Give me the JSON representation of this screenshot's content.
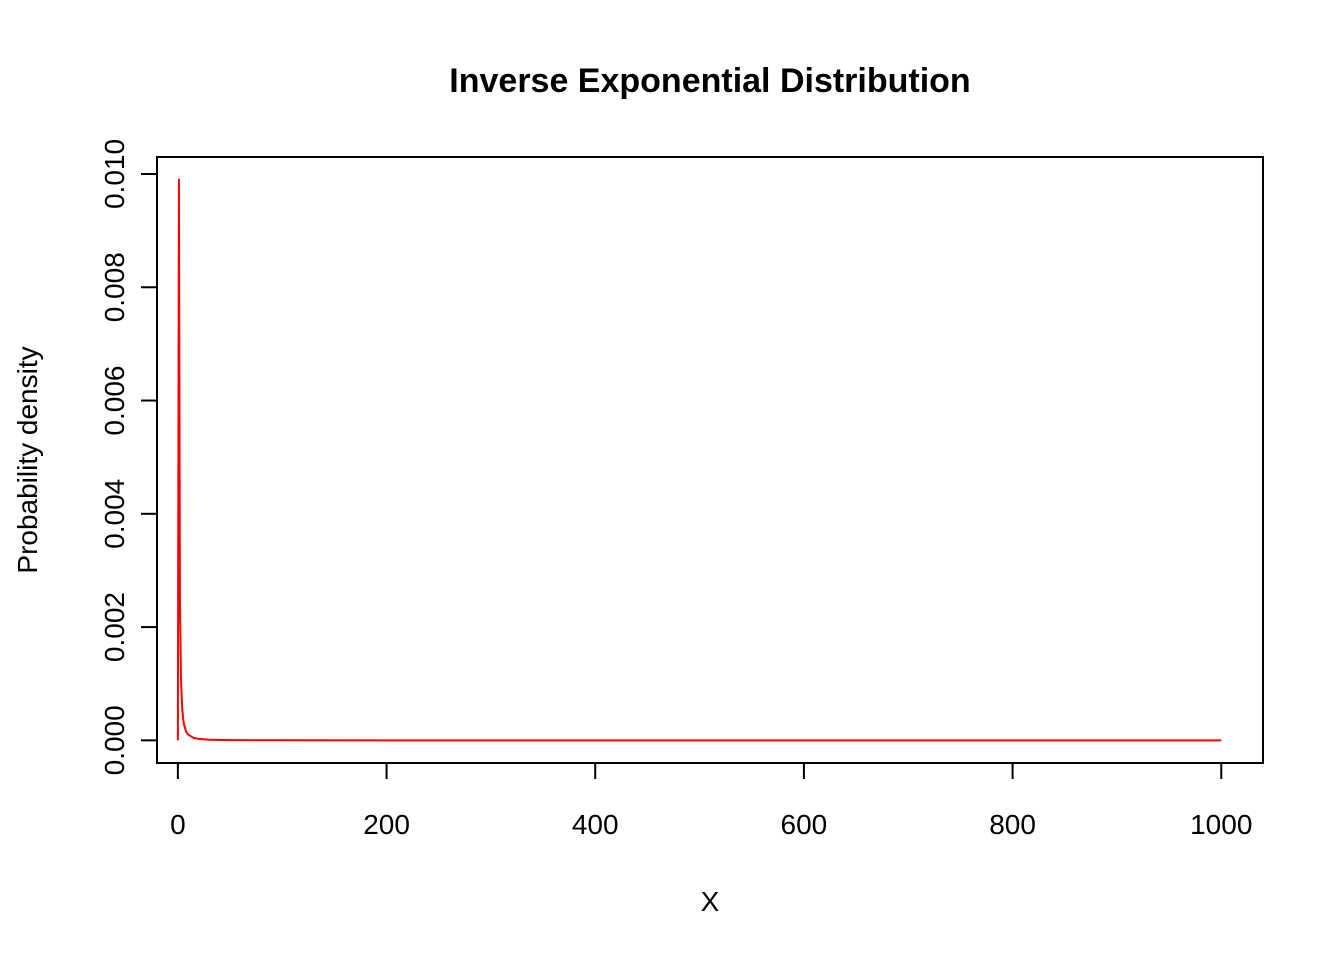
{
  "chart_data": {
    "type": "line",
    "title": "Inverse Exponential Distribution",
    "xlabel": "X",
    "ylabel": "Probability density",
    "xlim": [
      -20,
      1040
    ],
    "ylim": [
      -0.0004,
      0.0103
    ],
    "x_ticks": [
      0,
      200,
      400,
      600,
      800,
      1000
    ],
    "x_tick_labels": [
      "0",
      "200",
      "400",
      "600",
      "800",
      "1000"
    ],
    "y_ticks": [
      0,
      0.002,
      0.004,
      0.006,
      0.008,
      0.01
    ],
    "y_tick_labels": [
      "0.000",
      "0.002",
      "0.004",
      "0.006",
      "0.008",
      "0.010"
    ],
    "grid": false,
    "legend": "none",
    "series": [
      {
        "color": "#ff0000",
        "points": [
          [
            0,
            0
          ],
          [
            1,
            0.0099
          ],
          [
            2,
            0.0024
          ],
          [
            3,
            0.00108
          ],
          [
            4,
            0.00061
          ],
          [
            5,
            0.00039
          ],
          [
            6,
            0.00027
          ],
          [
            8,
            0.00015
          ],
          [
            10,
            0.0001
          ],
          [
            15,
            4.4e-05
          ],
          [
            20,
            2.5e-05
          ],
          [
            30,
            1.1e-05
          ],
          [
            50,
            4e-06
          ],
          [
            100,
            1e-06
          ],
          [
            200,
            3e-07
          ],
          [
            400,
            1e-07
          ],
          [
            600,
            3e-08
          ],
          [
            800,
            2e-08
          ],
          [
            1000,
            1e-08
          ]
        ]
      }
    ]
  }
}
